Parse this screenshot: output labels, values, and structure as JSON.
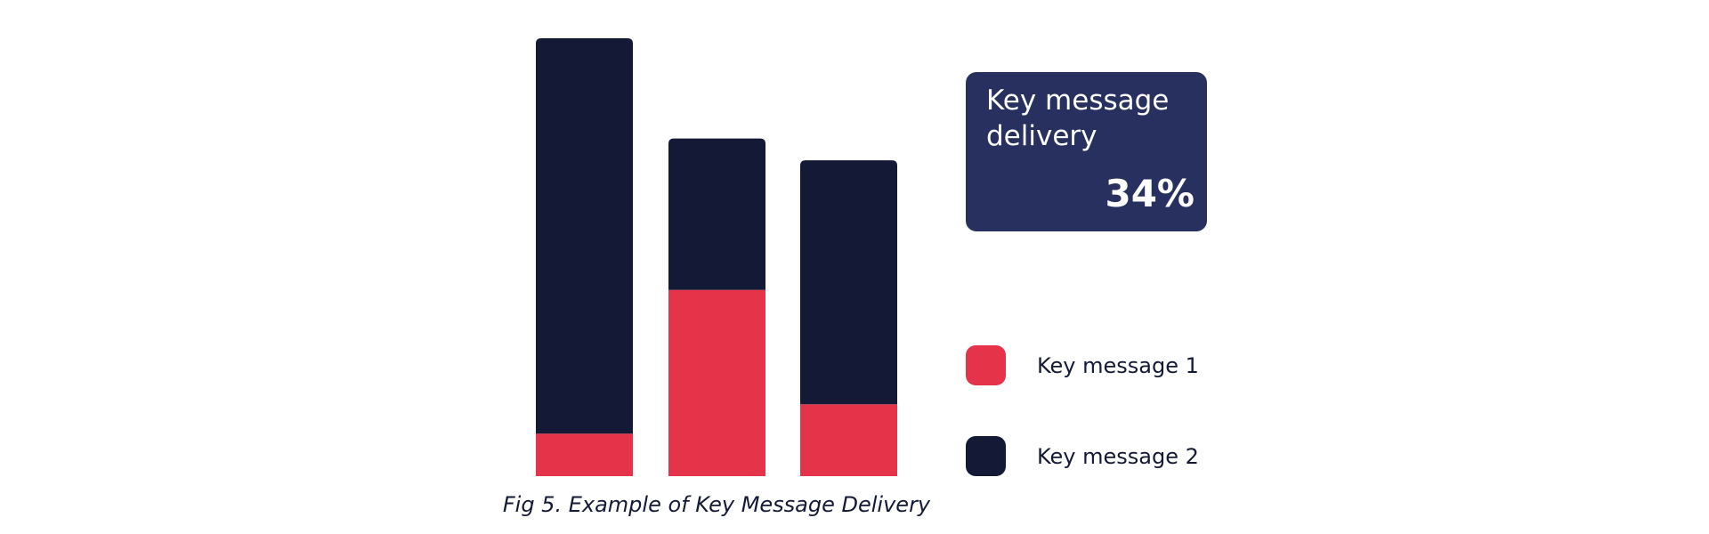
{
  "chart_data": {
    "type": "stacked-bar",
    "series": [
      {
        "name": "Key message 1",
        "color": "#e5344a",
        "values": [
          39,
          171,
          66
        ]
      },
      {
        "name": "Key message 2",
        "color": "#141936",
        "values": [
          363,
          139,
          224
        ]
      }
    ],
    "ylim": [
      0,
      402
    ],
    "caption": "Fig 5. Example of Key Message Delivery"
  },
  "card": {
    "title": "Key message delivery",
    "value": "34%",
    "color": "#283060"
  }
}
